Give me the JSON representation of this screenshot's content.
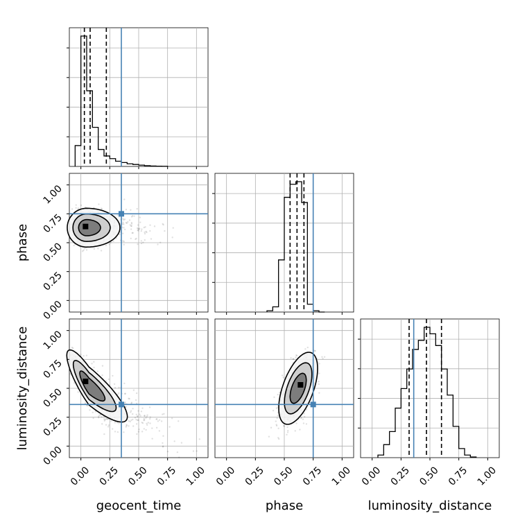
{
  "colors": {
    "truth": "#4682b4",
    "hist": "#000000",
    "grid": "#b0b0b0",
    "scatter": "#000000"
  },
  "chart_data": {
    "type": "corner",
    "parameters": [
      "geocent_time",
      "phase",
      "luminosity_distance"
    ],
    "truths": {
      "geocent_time": 0.35,
      "phase": 0.75,
      "luminosity_distance": 0.36
    },
    "axis_range": [
      -0.1,
      1.1
    ],
    "ticks": [
      0.0,
      0.25,
      0.5,
      0.75,
      1.0
    ],
    "tick_labels": [
      "0.00",
      "0.25",
      "0.50",
      "0.75",
      "1.00"
    ],
    "grid": true,
    "histograms": [
      {
        "param": "geocent_time",
        "bin_edges": [
          -0.05,
          0.0,
          0.05,
          0.1,
          0.15,
          0.2,
          0.25,
          0.3,
          0.35,
          0.4,
          0.45,
          0.5,
          0.55,
          0.6,
          0.65,
          0.7,
          0.75
        ],
        "counts": [
          0.16,
          1.0,
          0.58,
          0.3,
          0.13,
          0.08,
          0.06,
          0.04,
          0.03,
          0.02,
          0.015,
          0.01,
          0.006,
          0.003,
          0.002,
          0.001
        ],
        "quantiles": [
          0.03,
          0.08,
          0.22
        ]
      },
      {
        "param": "phase",
        "bin_edges": [
          0.35,
          0.4,
          0.45,
          0.5,
          0.55,
          0.6,
          0.65,
          0.7,
          0.75,
          0.8,
          0.85
        ],
        "counts": [
          0.01,
          0.04,
          0.4,
          0.88,
          0.98,
          1.0,
          0.84,
          0.06,
          0.01,
          0.0
        ],
        "quantiles": [
          0.55,
          0.61,
          0.67
        ]
      },
      {
        "param": "luminosity_distance",
        "bin_edges": [
          0.05,
          0.1,
          0.15,
          0.2,
          0.25,
          0.3,
          0.35,
          0.4,
          0.45,
          0.5,
          0.55,
          0.6,
          0.65,
          0.7,
          0.75,
          0.8,
          0.85,
          0.9
        ],
        "counts": [
          0.02,
          0.1,
          0.2,
          0.38,
          0.53,
          0.68,
          0.83,
          0.9,
          1.0,
          0.95,
          0.86,
          0.68,
          0.48,
          0.24,
          0.07,
          0.02,
          0.005
        ],
        "quantiles": [
          0.32,
          0.47,
          0.6
        ]
      }
    ],
    "joint": [
      {
        "x": "geocent_time",
        "y": "phase",
        "peak": [
          0.04,
          0.64
        ]
      },
      {
        "x": "geocent_time",
        "y": "luminosity_distance",
        "peak": [
          0.04,
          0.56
        ]
      },
      {
        "x": "phase",
        "y": "luminosity_distance",
        "peak": [
          0.64,
          0.53
        ]
      }
    ]
  }
}
